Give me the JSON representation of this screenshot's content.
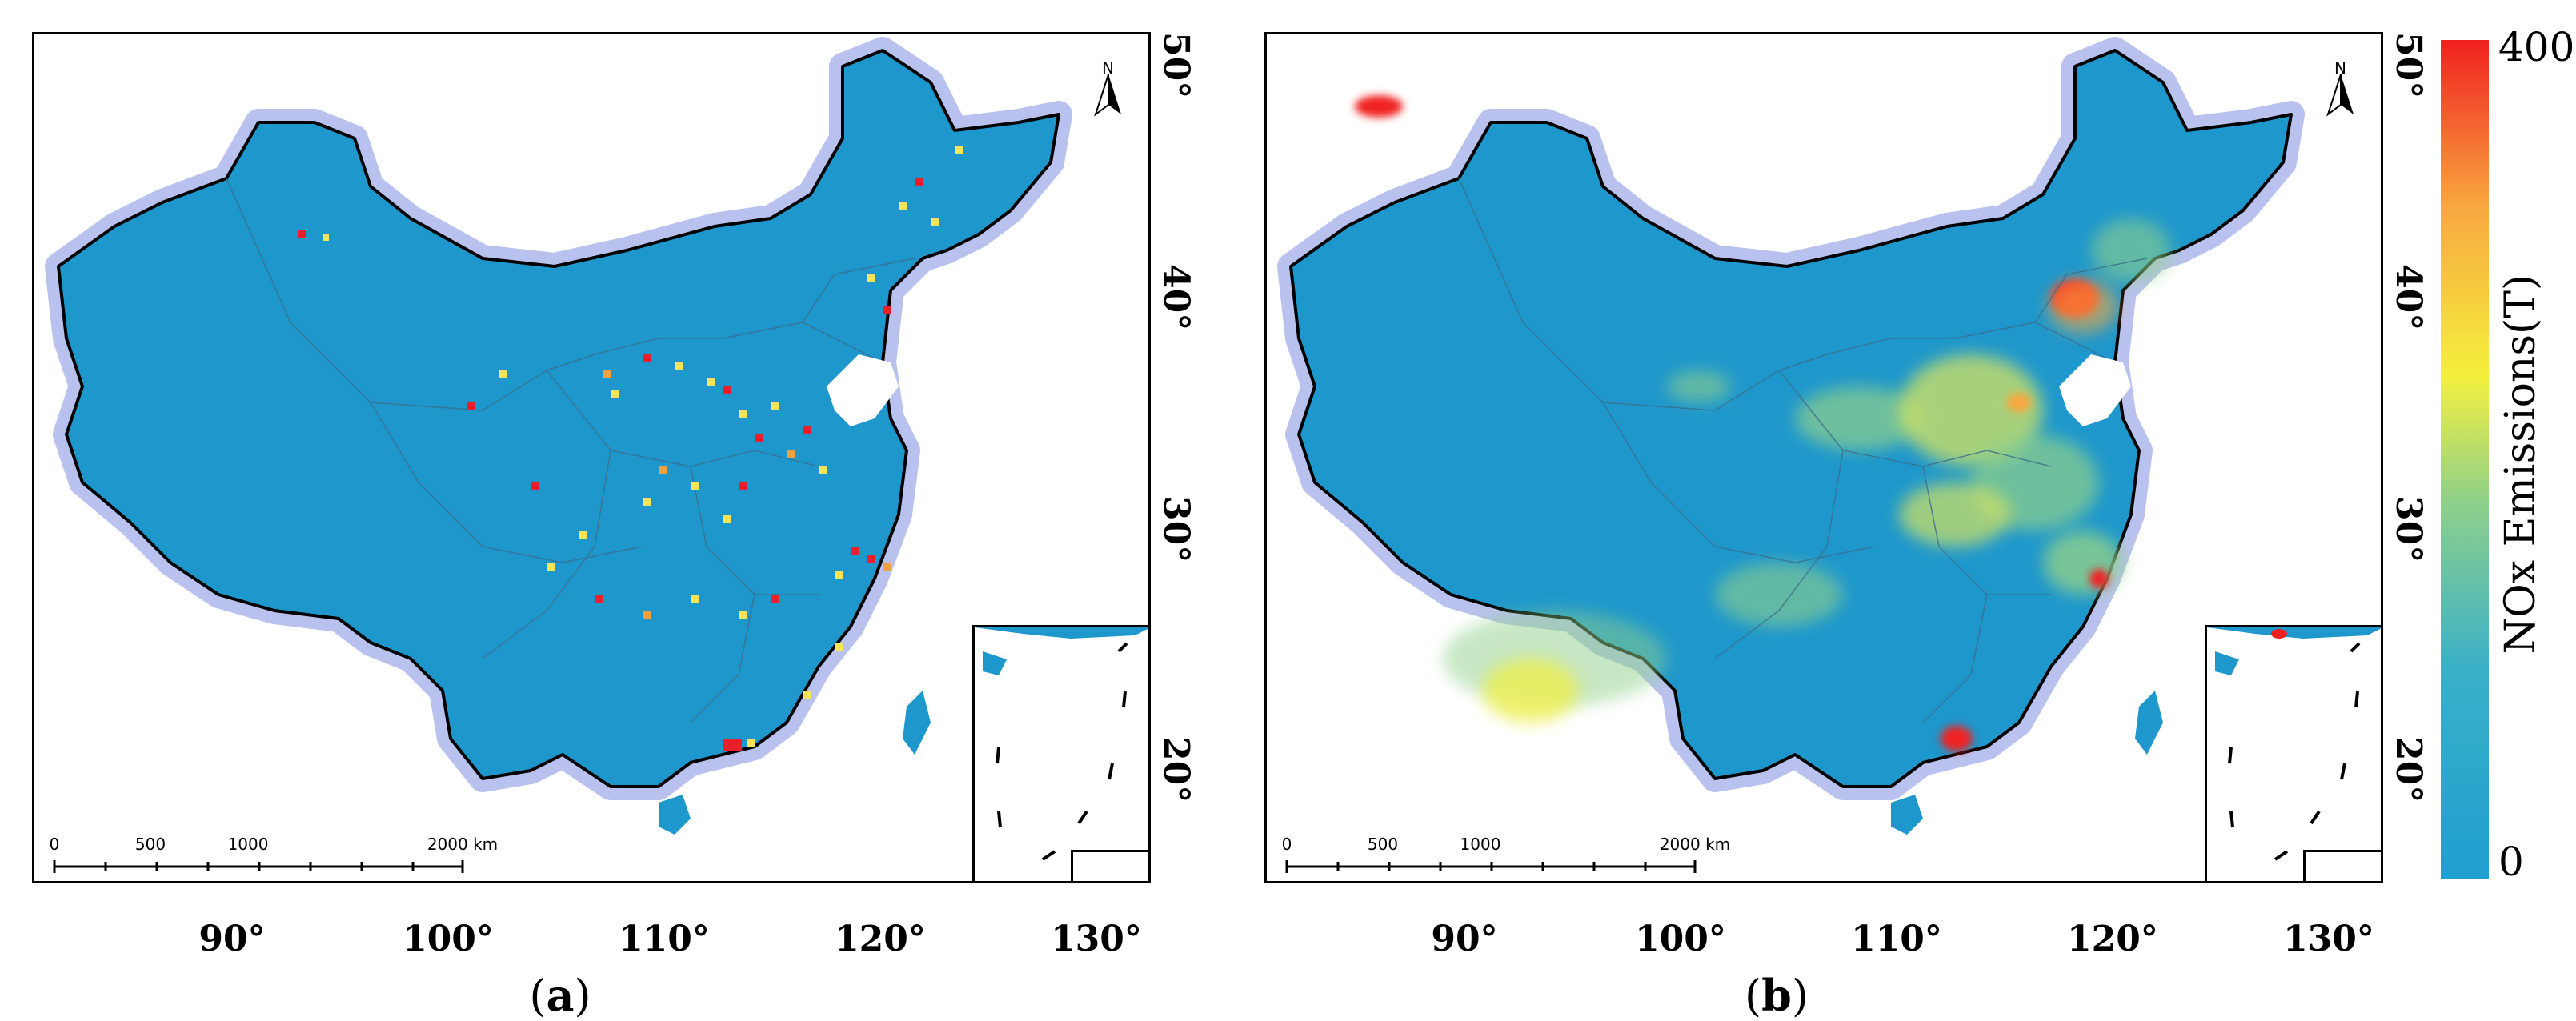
{
  "panels": [
    {
      "id": "a",
      "caption_letter": "a",
      "lon_ticks": [
        "90°",
        "100°",
        "110°",
        "120°",
        "130°"
      ],
      "lat_ticks": [
        "20°",
        "30°",
        "40°",
        "50°"
      ],
      "scalebar": {
        "labels": [
          "0",
          "500",
          "1000",
          "2000 km"
        ]
      },
      "north_label": "N",
      "style": "gridded point sources"
    },
    {
      "id": "b",
      "caption_letter": "b",
      "lon_ticks": [
        "90°",
        "100°",
        "110°",
        "120°",
        "130°"
      ],
      "lat_ticks": [
        "20°",
        "30°",
        "40°",
        "50°"
      ],
      "scalebar": {
        "labels": [
          "0",
          "500",
          "1000",
          "2000 km"
        ]
      },
      "north_label": "N",
      "style": "smoothed surface"
    }
  ],
  "colorbar": {
    "title": "NOx Emissions(T)",
    "max_label": "400",
    "min_label": "0",
    "colors": [
      "#1f9fd0",
      "#3ab0c8",
      "#8fd08a",
      "#f4f03c",
      "#f8a840",
      "#f02020"
    ]
  },
  "colors": {
    "background_land": "#1e97cc",
    "halo": "#b9c2ee",
    "border": "#000000"
  }
}
